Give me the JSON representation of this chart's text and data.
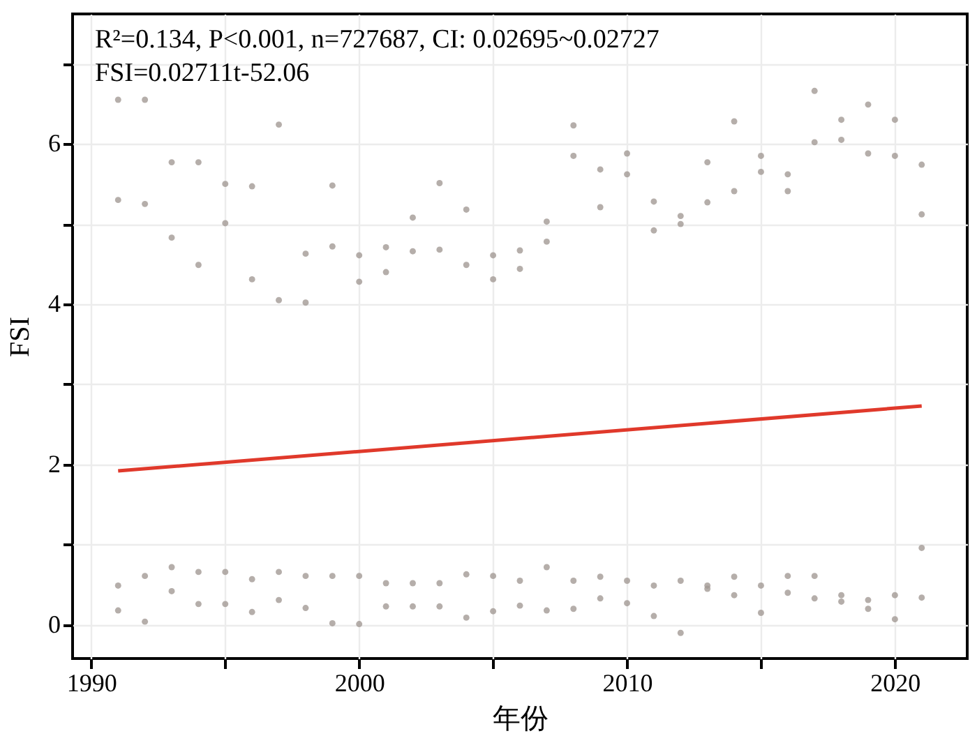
{
  "chart_data": {
    "type": "scatter",
    "xlabel": "年份",
    "ylabel": "FSI",
    "annotations": [
      "R²=0.134, P<0.001, n=727687, CI: 0.02695~0.02727",
      "FSI=0.02711t-52.06"
    ],
    "xlim": [
      1989.3,
      2022.7
    ],
    "xticks": [
      1990,
      {
        "value": 1995,
        "label": null
      },
      2000,
      {
        "value": 2005,
        "label": null
      },
      2010,
      {
        "value": 2015,
        "label": null
      },
      2020
    ],
    "ylim": [
      -0.42,
      7.62
    ],
    "yticks": [
      0,
      {
        "value": 1,
        "label": null
      },
      2,
      {
        "value": 3,
        "label": null
      },
      4,
      {
        "value": 5,
        "label": null
      },
      6,
      {
        "value": 7,
        "label": null
      }
    ],
    "grid": true,
    "series": [
      {
        "marker": "circle",
        "color": "#a39a95",
        "x": [
          1991,
          1991,
          1991,
          1991,
          1992,
          1992,
          1992,
          1992,
          1993,
          1993,
          1993,
          1993,
          1994,
          1994,
          1994,
          1994,
          1995,
          1995,
          1995,
          1995,
          1996,
          1996,
          1996,
          1996,
          1997,
          1997,
          1997,
          1997,
          1998,
          1998,
          1998,
          1998,
          1999,
          1999,
          1999,
          1999,
          2000,
          2000,
          2000,
          2000,
          2001,
          2001,
          2001,
          2001,
          2002,
          2002,
          2002,
          2002,
          2003,
          2003,
          2003,
          2003,
          2004,
          2004,
          2004,
          2004,
          2005,
          2005,
          2005,
          2005,
          2006,
          2006,
          2006,
          2006,
          2007,
          2007,
          2007,
          2007,
          2008,
          2008,
          2008,
          2008,
          2009,
          2009,
          2009,
          2009,
          2010,
          2010,
          2010,
          2010,
          2011,
          2011,
          2011,
          2011,
          2012,
          2012,
          2012,
          2012,
          2013,
          2013,
          2013,
          2013,
          2014,
          2014,
          2014,
          2014,
          2015,
          2015,
          2015,
          2015,
          2016,
          2016,
          2016,
          2016,
          2017,
          2017,
          2017,
          2017,
          2018,
          2018,
          2018,
          2018,
          2019,
          2019,
          2019,
          2019,
          2020,
          2020,
          2020,
          2020,
          2021,
          2021,
          2021,
          2021
        ],
        "values": [
          6.55,
          5.3,
          0.49,
          0.18,
          6.55,
          5.25,
          0.61,
          0.04,
          5.77,
          4.83,
          0.72,
          0.42,
          5.77,
          4.49,
          0.66,
          0.26,
          5.5,
          5.01,
          0.66,
          0.26,
          5.47,
          4.31,
          0.57,
          0.16,
          6.24,
          4.05,
          0.66,
          0.31,
          4.63,
          4.02,
          0.61,
          0.21,
          5.48,
          4.72,
          0.61,
          0.02,
          4.61,
          4.28,
          0.61,
          0.01,
          4.71,
          4.4,
          0.52,
          0.23,
          5.08,
          4.66,
          0.52,
          0.23,
          5.51,
          4.68,
          0.52,
          0.23,
          5.18,
          4.49,
          0.63,
          0.09,
          4.61,
          4.31,
          0.61,
          0.17,
          4.67,
          4.44,
          0.55,
          0.24,
          5.03,
          4.78,
          0.72,
          0.18,
          6.23,
          5.85,
          0.55,
          0.2,
          5.68,
          5.21,
          0.6,
          0.33,
          5.88,
          5.62,
          0.55,
          0.27,
          5.28,
          4.92,
          0.49,
          0.11,
          5.1,
          5.0,
          0.55,
          -0.1,
          5.77,
          5.27,
          0.49,
          0.45,
          6.28,
          5.41,
          0.6,
          0.37,
          5.85,
          5.65,
          0.49,
          0.15,
          5.62,
          5.41,
          0.61,
          0.4,
          6.66,
          6.02,
          0.61,
          0.33,
          6.3,
          6.05,
          0.37,
          0.29,
          6.49,
          5.88,
          0.31,
          0.2,
          6.3,
          5.85,
          0.37,
          0.07,
          5.74,
          5.12,
          0.96,
          0.34
        ]
      },
      {
        "type": "line",
        "color": "#e0392b",
        "x": [
          1991,
          2021
        ],
        "values": [
          1.92,
          2.73
        ]
      }
    ]
  }
}
